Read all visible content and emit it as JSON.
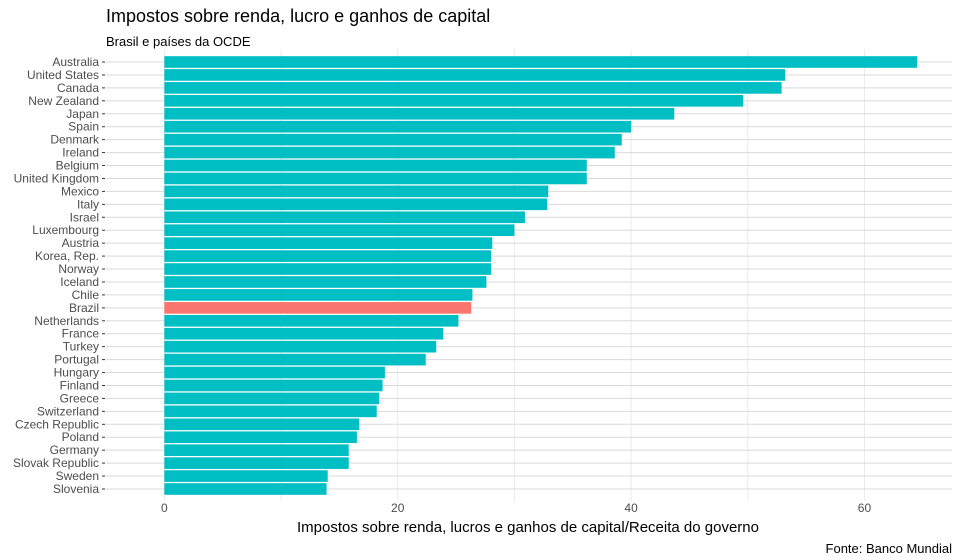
{
  "chart_data": {
    "type": "bar",
    "orientation": "horizontal",
    "title": "Impostos sobre renda, lucro e ganhos de capital",
    "subtitle": "Brasil e países da OCDE",
    "xlabel": "Impostos sobre renda, lucros e ganhos de capital/Receita do governo",
    "caption": "Fonte: Banco Mundial",
    "xlim": [
      -5,
      67.5
    ],
    "xticks": [
      0,
      20,
      40,
      60
    ],
    "grid": true,
    "colors": {
      "default": "#00BFC4",
      "highlight": "#F8766D"
    },
    "highlight": "Brazil",
    "categories": [
      "Australia",
      "United States",
      "Canada",
      "New Zealand",
      "Japan",
      "Spain",
      "Denmark",
      "Ireland",
      "Belgium",
      "United Kingdom",
      "Mexico",
      "Italy",
      "Israel",
      "Luxembourg",
      "Austria",
      "Korea, Rep.",
      "Norway",
      "Iceland",
      "Chile",
      "Brazil",
      "Netherlands",
      "France",
      "Turkey",
      "Portugal",
      "Hungary",
      "Finland",
      "Greece",
      "Switzerland",
      "Czech Republic",
      "Poland",
      "Germany",
      "Slovak Republic",
      "Sweden",
      "Slovenia"
    ],
    "values": [
      64.5,
      53.2,
      52.9,
      49.6,
      43.7,
      40.0,
      39.2,
      38.6,
      36.2,
      36.2,
      32.9,
      32.8,
      30.9,
      30.0,
      28.1,
      28.0,
      28.0,
      27.6,
      26.4,
      26.3,
      25.2,
      23.9,
      23.3,
      22.4,
      18.9,
      18.7,
      18.4,
      18.2,
      16.7,
      16.5,
      15.8,
      15.8,
      14.0,
      13.9
    ]
  }
}
